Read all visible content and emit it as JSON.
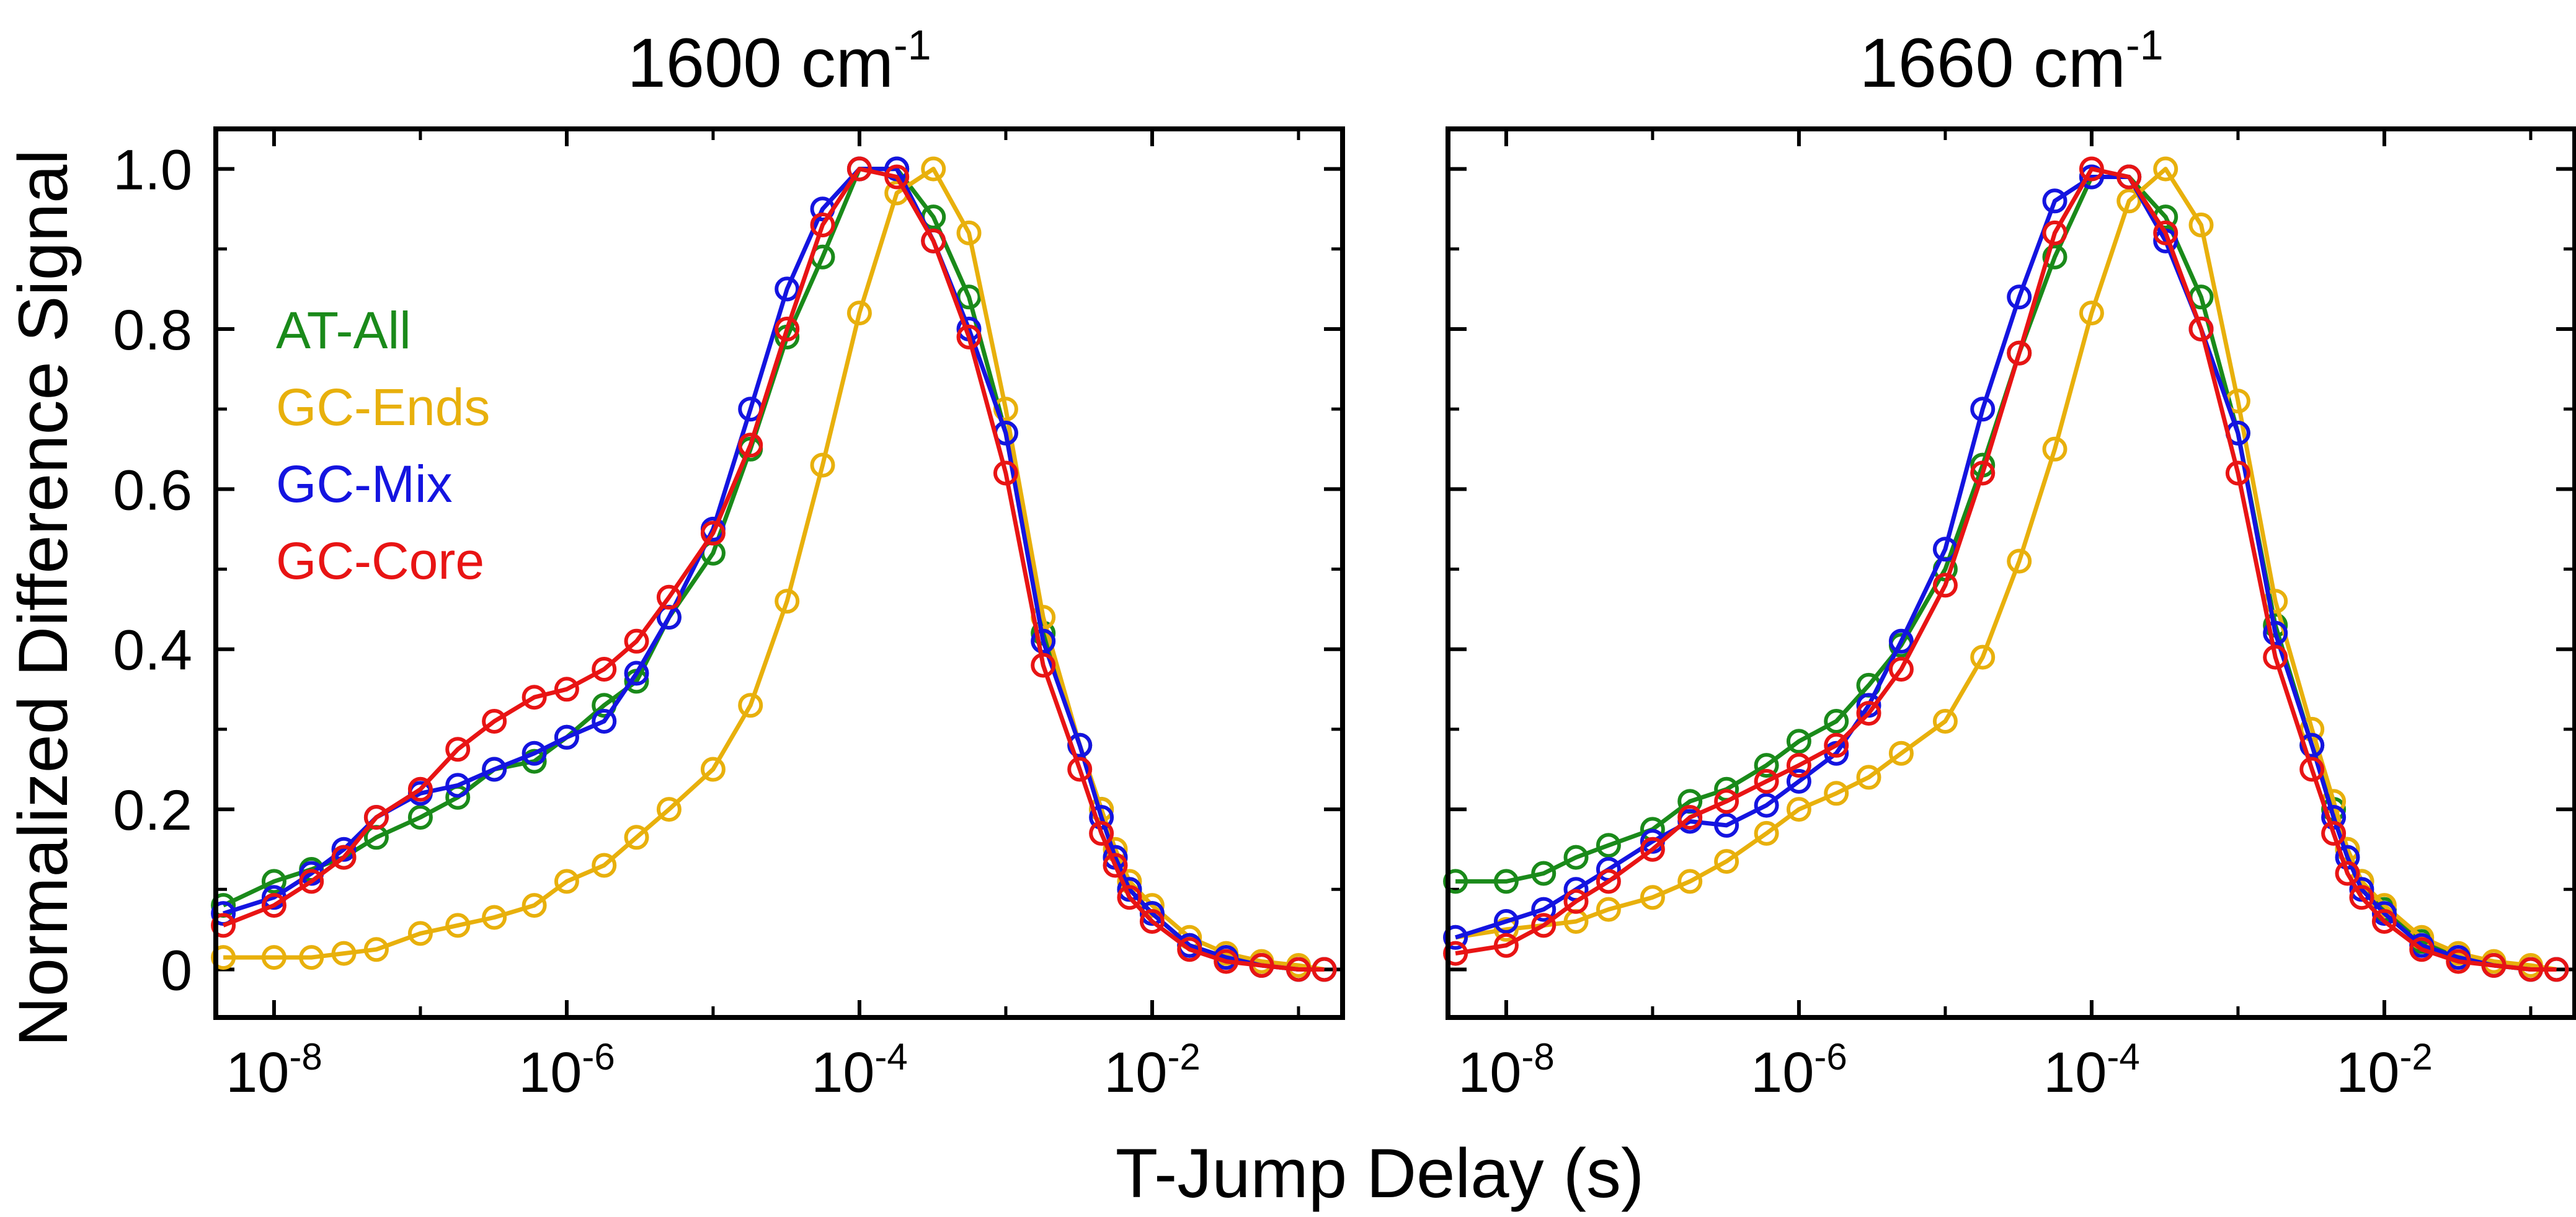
{
  "figure": {
    "ylabel": "Normalized Difference Signal",
    "xlabel": "T-Jump Delay (s)"
  },
  "legend": [
    {
      "name": "AT-All",
      "color": "#1a8a1a"
    },
    {
      "name": "GC-Ends",
      "color": "#e8b00c"
    },
    {
      "name": "GC-Mix",
      "color": "#1414e0"
    },
    {
      "name": "GC-Core",
      "color": "#e81414"
    }
  ],
  "chart_data": [
    {
      "type": "line",
      "title": "1600 cm",
      "title_superscript": "-1",
      "x_scale": "log",
      "xlim": [
        4e-09,
        0.2
      ],
      "ylim": [
        -0.06,
        1.05
      ],
      "xticks": [
        1e-08,
        1e-06,
        0.0001,
        0.01
      ],
      "xtick_labels": [
        {
          "base": "10",
          "exp": "-8"
        },
        {
          "base": "10",
          "exp": "-6"
        },
        {
          "base": "10",
          "exp": "-4"
        },
        {
          "base": "10",
          "exp": "-2"
        }
      ],
      "yticks": [
        0,
        0.2,
        0.4,
        0.6,
        0.8,
        1.0
      ],
      "ytick_labels": [
        "0",
        "0.2",
        "0.4",
        "0.6",
        "0.8",
        "1.0"
      ],
      "series": [
        {
          "name": "AT-All",
          "color": "#1a8a1a",
          "x": [
            4.5e-09,
            1e-08,
            1.8e-08,
            3e-08,
            5e-08,
            1e-07,
            1.8e-07,
            3.2e-07,
            6e-07,
            1e-06,
            1.8e-06,
            3e-06,
            5e-06,
            1e-05,
            1.8e-05,
            3.2e-05,
            5.6e-05,
            0.0001,
            0.00018,
            0.00032,
            0.00056,
            0.001,
            0.0018,
            0.0032,
            0.0045,
            0.0056,
            0.007,
            0.01,
            0.018,
            0.032,
            0.056,
            0.1,
            0.15
          ],
          "y": [
            0.08,
            0.11,
            0.125,
            0.14,
            0.165,
            0.19,
            0.215,
            0.25,
            0.26,
            0.29,
            0.33,
            0.36,
            0.44,
            0.52,
            0.65,
            0.79,
            0.89,
            1.0,
            1.0,
            0.94,
            0.84,
            0.67,
            0.42,
            0.28,
            0.2,
            0.14,
            0.1,
            0.07,
            0.03,
            0.015,
            0.005,
            0.0,
            0.0
          ]
        },
        {
          "name": "GC-Ends",
          "color": "#e8b00c",
          "x": [
            4.5e-09,
            1e-08,
            1.8e-08,
            3e-08,
            5e-08,
            1e-07,
            1.8e-07,
            3.2e-07,
            6e-07,
            1e-06,
            1.8e-06,
            3e-06,
            5e-06,
            1e-05,
            1.8e-05,
            3.2e-05,
            5.6e-05,
            0.0001,
            0.00018,
            0.00032,
            0.00056,
            0.001,
            0.0018,
            0.0032,
            0.0045,
            0.0056,
            0.007,
            0.01,
            0.018,
            0.032,
            0.056,
            0.1,
            0.15
          ],
          "y": [
            0.015,
            0.015,
            0.015,
            0.02,
            0.025,
            0.045,
            0.055,
            0.065,
            0.08,
            0.11,
            0.13,
            0.165,
            0.2,
            0.25,
            0.33,
            0.46,
            0.63,
            0.82,
            0.97,
            1.0,
            0.92,
            0.7,
            0.44,
            0.28,
            0.2,
            0.15,
            0.11,
            0.08,
            0.04,
            0.02,
            0.01,
            0.005,
            0.0
          ]
        },
        {
          "name": "GC-Mix",
          "color": "#1414e0",
          "x": [
            4.5e-09,
            1e-08,
            1.8e-08,
            3e-08,
            5e-08,
            1e-07,
            1.8e-07,
            3.2e-07,
            6e-07,
            1e-06,
            1.8e-06,
            3e-06,
            5e-06,
            1e-05,
            1.8e-05,
            3.2e-05,
            5.6e-05,
            0.0001,
            0.00018,
            0.00032,
            0.00056,
            0.001,
            0.0018,
            0.0032,
            0.0045,
            0.0056,
            0.007,
            0.01,
            0.018,
            0.032,
            0.056,
            0.1,
            0.15
          ],
          "y": [
            0.07,
            0.09,
            0.12,
            0.15,
            0.19,
            0.22,
            0.23,
            0.25,
            0.27,
            0.29,
            0.31,
            0.37,
            0.44,
            0.55,
            0.7,
            0.85,
            0.95,
            1.0,
            1.0,
            0.91,
            0.8,
            0.67,
            0.41,
            0.28,
            0.19,
            0.14,
            0.1,
            0.07,
            0.03,
            0.015,
            0.005,
            0.0,
            0.0
          ]
        },
        {
          "name": "GC-Core",
          "color": "#e81414",
          "x": [
            4.5e-09,
            1e-08,
            1.8e-08,
            3e-08,
            5e-08,
            1e-07,
            1.8e-07,
            3.2e-07,
            6e-07,
            1e-06,
            1.8e-06,
            3e-06,
            5e-06,
            1e-05,
            1.8e-05,
            3.2e-05,
            5.6e-05,
            0.0001,
            0.00018,
            0.00032,
            0.00056,
            0.001,
            0.0018,
            0.0032,
            0.0045,
            0.0056,
            0.007,
            0.01,
            0.018,
            0.032,
            0.056,
            0.1,
            0.15
          ],
          "y": [
            0.055,
            0.08,
            0.11,
            0.14,
            0.19,
            0.225,
            0.275,
            0.31,
            0.34,
            0.35,
            0.375,
            0.41,
            0.465,
            0.545,
            0.655,
            0.8,
            0.93,
            1.0,
            0.99,
            0.91,
            0.79,
            0.62,
            0.38,
            0.25,
            0.17,
            0.13,
            0.09,
            0.06,
            0.025,
            0.01,
            0.005,
            0.0,
            0.0
          ]
        }
      ]
    },
    {
      "type": "line",
      "title": "1660 cm",
      "title_superscript": "-1",
      "x_scale": "log",
      "xlim": [
        4e-09,
        0.2
      ],
      "ylim": [
        -0.06,
        1.05
      ],
      "xticks": [
        1e-08,
        1e-06,
        0.0001,
        0.01
      ],
      "xtick_labels": [
        {
          "base": "10",
          "exp": "-8"
        },
        {
          "base": "10",
          "exp": "-6"
        },
        {
          "base": "10",
          "exp": "-4"
        },
        {
          "base": "10",
          "exp": "-2"
        }
      ],
      "yticks": [
        0,
        0.2,
        0.4,
        0.6,
        0.8,
        1.0
      ],
      "ytick_labels": [],
      "series": [
        {
          "name": "AT-All",
          "color": "#1a8a1a",
          "x": [
            4.5e-09,
            1e-08,
            1.8e-08,
            3e-08,
            5e-08,
            1e-07,
            1.8e-07,
            3.2e-07,
            6e-07,
            1e-06,
            1.8e-06,
            3e-06,
            5e-06,
            1e-05,
            1.8e-05,
            3.2e-05,
            5.6e-05,
            0.0001,
            0.00018,
            0.00032,
            0.00056,
            0.001,
            0.0018,
            0.0032,
            0.0045,
            0.0056,
            0.007,
            0.01,
            0.018,
            0.032,
            0.056,
            0.1,
            0.15
          ],
          "y": [
            0.11,
            0.11,
            0.12,
            0.14,
            0.155,
            0.175,
            0.21,
            0.225,
            0.255,
            0.285,
            0.31,
            0.355,
            0.405,
            0.5,
            0.63,
            0.77,
            0.89,
            0.99,
            0.99,
            0.94,
            0.84,
            0.67,
            0.43,
            0.28,
            0.2,
            0.15,
            0.11,
            0.075,
            0.035,
            0.015,
            0.005,
            0.0,
            0.0
          ]
        },
        {
          "name": "GC-Ends",
          "color": "#e8b00c",
          "x": [
            4.5e-09,
            1e-08,
            1.8e-08,
            3e-08,
            5e-08,
            1e-07,
            1.8e-07,
            3.2e-07,
            6e-07,
            1e-06,
            1.8e-06,
            3e-06,
            5e-06,
            1e-05,
            1.8e-05,
            3.2e-05,
            5.6e-05,
            0.0001,
            0.00018,
            0.00032,
            0.00056,
            0.001,
            0.0018,
            0.0032,
            0.0045,
            0.0056,
            0.007,
            0.01,
            0.018,
            0.032,
            0.056,
            0.1,
            0.15
          ],
          "y": [
            0.04,
            0.05,
            0.055,
            0.06,
            0.075,
            0.09,
            0.11,
            0.135,
            0.17,
            0.2,
            0.22,
            0.24,
            0.27,
            0.31,
            0.39,
            0.51,
            0.65,
            0.82,
            0.96,
            1.0,
            0.93,
            0.71,
            0.46,
            0.3,
            0.21,
            0.15,
            0.11,
            0.08,
            0.04,
            0.02,
            0.01,
            0.005,
            0.0
          ]
        },
        {
          "name": "GC-Mix",
          "color": "#1414e0",
          "x": [
            4.5e-09,
            1e-08,
            1.8e-08,
            3e-08,
            5e-08,
            1e-07,
            1.8e-07,
            3.2e-07,
            6e-07,
            1e-06,
            1.8e-06,
            3e-06,
            5e-06,
            1e-05,
            1.8e-05,
            3.2e-05,
            5.6e-05,
            0.0001,
            0.00018,
            0.00032,
            0.00056,
            0.001,
            0.0018,
            0.0032,
            0.0045,
            0.0056,
            0.007,
            0.01,
            0.018,
            0.032,
            0.056,
            0.1,
            0.15
          ],
          "y": [
            0.04,
            0.06,
            0.075,
            0.1,
            0.125,
            0.16,
            0.185,
            0.18,
            0.205,
            0.235,
            0.27,
            0.33,
            0.41,
            0.525,
            0.7,
            0.84,
            0.96,
            0.99,
            0.99,
            0.91,
            0.8,
            0.67,
            0.42,
            0.28,
            0.19,
            0.14,
            0.1,
            0.07,
            0.03,
            0.015,
            0.005,
            0.0,
            0.0
          ]
        },
        {
          "name": "GC-Core",
          "color": "#e81414",
          "x": [
            4.5e-09,
            1e-08,
            1.8e-08,
            3e-08,
            5e-08,
            1e-07,
            1.8e-07,
            3.2e-07,
            6e-07,
            1e-06,
            1.8e-06,
            3e-06,
            5e-06,
            1e-05,
            1.8e-05,
            3.2e-05,
            5.6e-05,
            0.0001,
            0.00018,
            0.00032,
            0.00056,
            0.001,
            0.0018,
            0.0032,
            0.0045,
            0.0056,
            0.007,
            0.01,
            0.018,
            0.032,
            0.056,
            0.1,
            0.15
          ],
          "y": [
            0.02,
            0.03,
            0.055,
            0.085,
            0.11,
            0.15,
            0.19,
            0.21,
            0.235,
            0.255,
            0.28,
            0.32,
            0.375,
            0.48,
            0.62,
            0.77,
            0.92,
            1.0,
            0.99,
            0.92,
            0.8,
            0.62,
            0.39,
            0.25,
            0.17,
            0.12,
            0.09,
            0.06,
            0.025,
            0.01,
            0.005,
            0.0,
            0.0
          ]
        }
      ]
    }
  ]
}
